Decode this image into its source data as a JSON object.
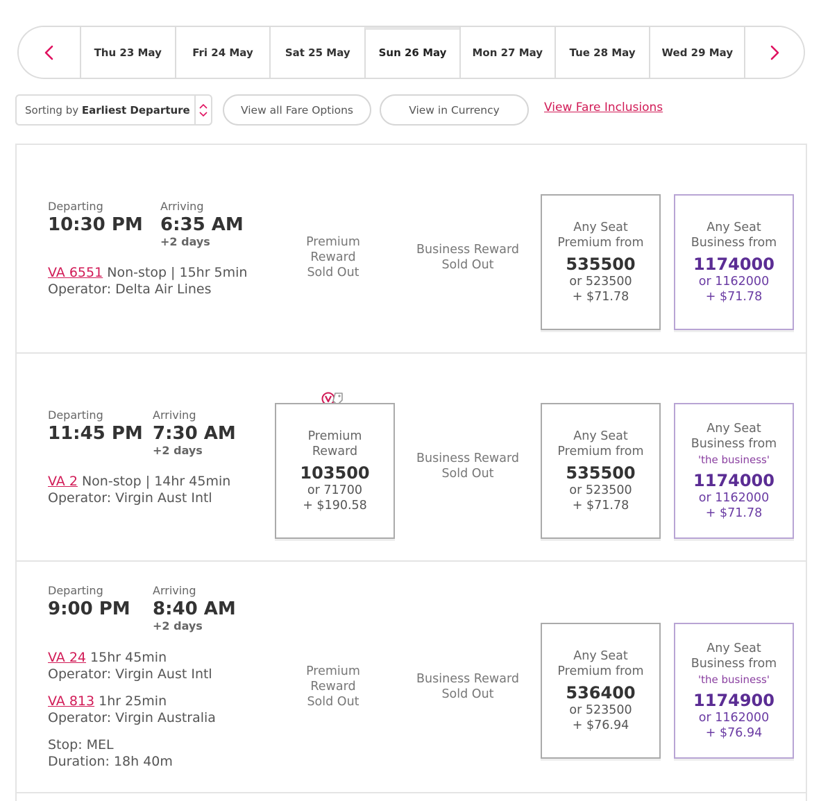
{
  "date_nav": {
    "prev_icon": "chevron-left-icon",
    "next_icon": "chevron-right-icon",
    "accent_color": "#e0115f",
    "dates": [
      {
        "label": "Thu 23 May",
        "active": false
      },
      {
        "label": "Fri 24 May",
        "active": false
      },
      {
        "label": "Sat 25 May",
        "active": false
      },
      {
        "label": "Sun 26 May",
        "active": true
      },
      {
        "label": "Mon 27 May",
        "active": false
      },
      {
        "label": "Tue 28 May",
        "active": false
      },
      {
        "label": "Wed 29 May",
        "active": false
      }
    ]
  },
  "controls": {
    "sort_prefix": "Sorting by",
    "sort_value": "Earliest Departure",
    "view_fares": "View all Fare Options",
    "view_currency": "View in Currency",
    "fare_inclusions": "View Fare Inclusions"
  },
  "colors": {
    "brand_red": "#d11a56",
    "business_purple": "#5b2d94"
  },
  "labels": {
    "departing": "Departing",
    "arriving": "Arriving"
  },
  "flights": [
    {
      "depart": "10:30 PM",
      "arrive": "6:35 AM",
      "days": "+2 days",
      "segments": [
        {
          "flight": "VA 6551",
          "info": "Non-stop | 15hr 5min",
          "operator": "Operator: Delta Air Lines"
        }
      ],
      "premium_reward": {
        "status": "sold_out",
        "line1": "Premium",
        "line2": "Reward",
        "line3": "Sold Out"
      },
      "business_reward": {
        "line1": "Business Reward",
        "line2": "Sold Out"
      },
      "premium_any": {
        "line1": "Any Seat",
        "line2": "Premium from",
        "points": "535500",
        "alt": "or 523500",
        "tax": "+ $71.78"
      },
      "business_any": {
        "line1": "Any Seat",
        "line2": "Business from",
        "points": "1174000",
        "alt": "or 1162000",
        "tax": "+ $71.78"
      }
    },
    {
      "depart": "11:45 PM",
      "arrive": "7:30 AM",
      "days": "+2 days",
      "segments": [
        {
          "flight": "VA 2",
          "info": "Non-stop | 14hr 45min",
          "operator": "Operator: Virgin Aust Intl"
        }
      ],
      "premium_reward": {
        "status": "available",
        "badge_icon": "velocity-tag-icon",
        "line1": "Premium",
        "line2": "Reward",
        "points": "103500",
        "alt": "or 71700",
        "tax": "+ $190.58"
      },
      "business_reward": {
        "line1": "Business Reward",
        "line2": "Sold Out"
      },
      "premium_any": {
        "line1": "Any Seat",
        "line2": "Premium from",
        "points": "535500",
        "alt": "or 523500",
        "tax": "+ $71.78"
      },
      "business_any": {
        "line1": "Any Seat",
        "line2": "Business from",
        "tag": "'the business'",
        "points": "1174000",
        "alt": "or 1162000",
        "tax": "+ $71.78"
      }
    },
    {
      "depart": "9:00 PM",
      "arrive": "8:40 AM",
      "days": "+2 days",
      "segments": [
        {
          "flight": "VA 24",
          "info": "15hr 45min",
          "operator": "Operator: Virgin Aust Intl"
        },
        {
          "flight": "VA 813",
          "info": "1hr 25min",
          "operator": "Operator: Virgin Australia"
        }
      ],
      "stop": "Stop: MEL",
      "duration": "Duration: 18h 40m",
      "premium_reward": {
        "status": "sold_out",
        "line1": "Premium",
        "line2": "Reward",
        "line3": "Sold Out"
      },
      "business_reward": {
        "line1": "Business Reward",
        "line2": "Sold Out"
      },
      "premium_any": {
        "line1": "Any Seat",
        "line2": "Premium from",
        "points": "536400",
        "alt": "or 523500",
        "tax": "+ $76.94"
      },
      "business_any": {
        "line1": "Any Seat",
        "line2": "Business from",
        "tag": "'the business'",
        "points": "1174900",
        "alt": "or 1162000",
        "tax": "+ $76.94"
      }
    }
  ]
}
